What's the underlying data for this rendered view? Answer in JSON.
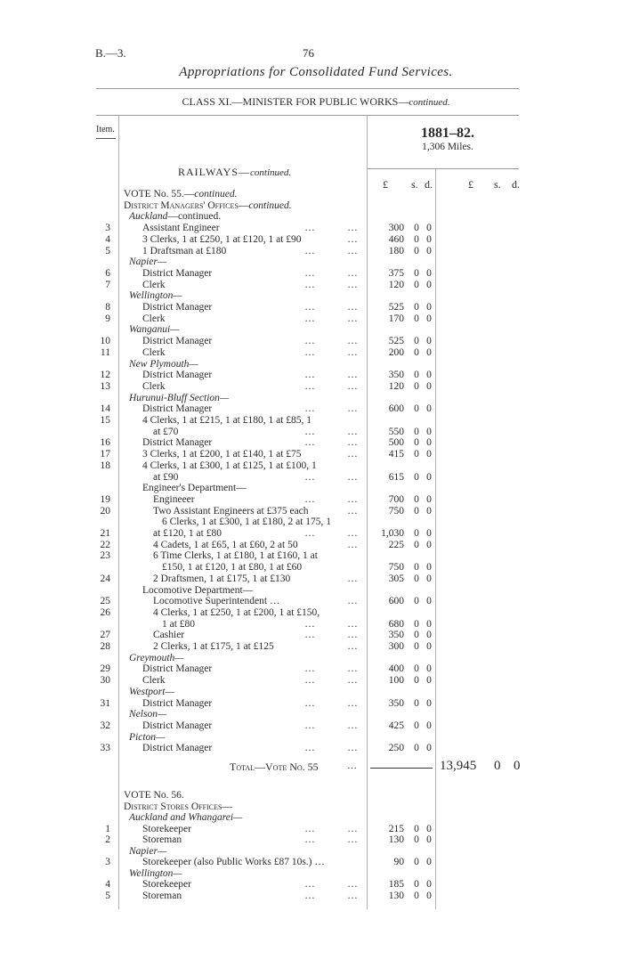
{
  "header": {
    "ref": "B.—3.",
    "page_number": "76",
    "title": "Appropriations for Consolidated Fund Services.",
    "class_heading": "CLASS XI.—MINISTER FOR PUBLIC WORKS—",
    "class_heading_suffix": "continued."
  },
  "table_header": {
    "item_label": "Item.",
    "year": "1881–82.",
    "miles": "1,306 Miles.",
    "pounds": "£",
    "shillings": "s.",
    "pence": "d.",
    "pounds2": "£",
    "shillings2": "s.",
    "pence2": "d."
  },
  "section": {
    "title": "RAILWAYS—",
    "suffix": "continued."
  },
  "vote55": {
    "rows": [
      {
        "text": "VOTE No. 55.—",
        "suffix": "continued.",
        "indent": 0,
        "style": ""
      },
      {
        "text": "District Managers' Offices—",
        "suffix": "continued.",
        "indent": 0,
        "style": "sc"
      },
      {
        "text": "Auckland",
        "suffix2": "—continued.",
        "indent": 1,
        "style": "it"
      },
      {
        "item": "3",
        "text": "Assistant Engineer",
        "indent": 2,
        "dots": 2,
        "amount": "300",
        "s": "0",
        "d": "0"
      },
      {
        "item": "4",
        "text": "3 Clerks, 1 at £250, 1 at £120, 1 at £90",
        "indent": 2,
        "dots": 1,
        "amount": "460",
        "s": "0",
        "d": "0"
      },
      {
        "item": "5",
        "text": "1 Draftsman at £180",
        "indent": 2,
        "dots": 2,
        "amount": "180",
        "s": "0",
        "d": "0"
      },
      {
        "text": "Napier—",
        "indent": 1,
        "style": "it"
      },
      {
        "item": "6",
        "text": "District Manager",
        "indent": 2,
        "dots": 2,
        "amount": "375",
        "s": "0",
        "d": "0"
      },
      {
        "item": "7",
        "text": "Clerk",
        "indent": 2,
        "dots": 2,
        "amount": "120",
        "s": "0",
        "d": "0"
      },
      {
        "text": "Wellington—",
        "indent": 1,
        "style": "it"
      },
      {
        "item": "8",
        "text": "District Manager",
        "indent": 2,
        "dots": 2,
        "amount": "525",
        "s": "0",
        "d": "0"
      },
      {
        "item": "9",
        "text": "Clerk",
        "indent": 2,
        "dots": 2,
        "amount": "170",
        "s": "0",
        "d": "0"
      },
      {
        "text": "Wanganui—",
        "indent": 1,
        "style": "it"
      },
      {
        "item": "10",
        "text": "District Manager",
        "indent": 2,
        "dots": 2,
        "amount": "525",
        "s": "0",
        "d": "0"
      },
      {
        "item": "11",
        "text": "Clerk",
        "indent": 2,
        "dots": 2,
        "amount": "200",
        "s": "0",
        "d": "0"
      },
      {
        "text": "New Plymouth—",
        "indent": 1,
        "style": "it"
      },
      {
        "item": "12",
        "text": "District Manager",
        "indent": 2,
        "dots": 2,
        "amount": "350",
        "s": "0",
        "d": "0"
      },
      {
        "item": "13",
        "text": "Clerk",
        "indent": 2,
        "dots": 2,
        "amount": "120",
        "s": "0",
        "d": "0"
      },
      {
        "text": "Hurunui-Bluff Section—",
        "indent": 1,
        "style": "it"
      },
      {
        "item": "14",
        "text": "District Manager",
        "indent": 2,
        "dots": 2,
        "amount": "600",
        "s": "0",
        "d": "0"
      },
      {
        "item": "15",
        "text": "4 Clerks, 1 at £215, 1 at £180, 1 at £85, 1",
        "indent": 2
      },
      {
        "text": "at £70",
        "indent": 3,
        "dots": 2,
        "amount": "550",
        "s": "0",
        "d": "0"
      },
      {
        "item": "16",
        "text": "District Manager",
        "indent": 2,
        "dots": 2,
        "amount": "500",
        "s": "0",
        "d": "0"
      },
      {
        "item": "17",
        "text": "3 Clerks, 1 at £200, 1 at £140, 1 at £75",
        "indent": 2,
        "dots": 1,
        "amount": "415",
        "s": "0",
        "d": "0"
      },
      {
        "item": "18",
        "text": "4 Clerks, 1 at £300, 1 at £125, 1 at £100, 1",
        "indent": 2
      },
      {
        "text": "at £90",
        "indent": 3,
        "dots": 2,
        "amount": "615",
        "s": "0",
        "d": "0"
      },
      {
        "text": "Engineer's Department—",
        "indent": 2
      },
      {
        "item": "19",
        "text": "Engineeer",
        "indent": 3,
        "dots": 2,
        "amount": "700",
        "s": "0",
        "d": "0"
      },
      {
        "item": "20",
        "text": "Two Assistant Engineers at £375 each",
        "indent": 3,
        "dots": 1,
        "amount": "750",
        "s": "0",
        "d": "0"
      },
      {
        "text": "6 Clerks, 1 at £300, 1 at £180, 2 at 175, 1",
        "indent": 4
      },
      {
        "item": "21",
        "text": "at £120, 1 at £80",
        "indent": 3,
        "dots": 2,
        "amount": "1,030",
        "s": "0",
        "d": "0"
      },
      {
        "item": "22",
        "text": "4 Cadets, 1 at £65, 1 at £60, 2 at 50",
        "indent": 3,
        "dots": 1,
        "amount": "225",
        "s": "0",
        "d": "0"
      },
      {
        "item": "23",
        "text": "6 Time Clerks, 1 at £180, 1 at £160, 1 at",
        "indent": 3
      },
      {
        "text": "£150, 1 at £120, 1 at £80, 1 at £60",
        "indent": 4,
        "amount": "750",
        "s": "0",
        "d": "0"
      },
      {
        "item": "24",
        "text": "2 Draftsmen, 1 at £175, 1 at £130",
        "indent": 3,
        "dots": 1,
        "amount": "305",
        "s": "0",
        "d": "0"
      },
      {
        "text": "Locomotive Department—",
        "indent": 2
      },
      {
        "item": "25",
        "text": "Locomotive Superintendent …",
        "indent": 3,
        "dots": 1,
        "amount": "600",
        "s": "0",
        "d": "0"
      },
      {
        "item": "26",
        "text": "4 Clerks, 1 at £250, 1 at £200, 1 at £150,",
        "indent": 3
      },
      {
        "text": "1 at £80",
        "indent": 4,
        "dots": 2,
        "amount": "680",
        "s": "0",
        "d": "0"
      },
      {
        "item": "27",
        "text": "Cashier",
        "indent": 3,
        "dots": 2,
        "amount": "350",
        "s": "0",
        "d": "0"
      },
      {
        "item": "28",
        "text": "2 Clerks, 1 at £175, 1 at £125",
        "indent": 3,
        "dots": 1,
        "amount": "300",
        "s": "0",
        "d": "0"
      },
      {
        "text": "Greymouth—",
        "indent": 1,
        "style": "it"
      },
      {
        "item": "29",
        "text": "District Manager",
        "indent": 2,
        "dots": 2,
        "amount": "400",
        "s": "0",
        "d": "0"
      },
      {
        "item": "30",
        "text": "Clerk",
        "indent": 2,
        "dots": 2,
        "amount": "100",
        "s": "0",
        "d": "0"
      },
      {
        "text": "Westport—",
        "indent": 1,
        "style": "it"
      },
      {
        "item": "31",
        "text": "District Manager",
        "indent": 2,
        "dots": 2,
        "amount": "350",
        "s": "0",
        "d": "0"
      },
      {
        "text": "Nelson—",
        "indent": 1,
        "style": "it"
      },
      {
        "item": "32",
        "text": "District Manager",
        "indent": 2,
        "dots": 2,
        "amount": "425",
        "s": "0",
        "d": "0"
      },
      {
        "text": "Picton—",
        "indent": 1,
        "style": "it"
      },
      {
        "item": "33",
        "text": "District Manager",
        "indent": 2,
        "dots": 2,
        "amount": "250",
        "s": "0",
        "d": "0"
      }
    ],
    "total_label": "Total—Vote No. 55",
    "total_dots": "…",
    "total": {
      "amount": "13,945",
      "s": "0",
      "d": "0"
    }
  },
  "vote56": {
    "rows": [
      {
        "text": "VOTE No. 56.",
        "indent": 0
      },
      {
        "text": "District Stores Offices—",
        "indent": 0,
        "style": "sc"
      },
      {
        "text": "Auckland and Whangarei—",
        "indent": 1,
        "style": "it"
      },
      {
        "item": "1",
        "text": "Storekeeper",
        "indent": 2,
        "dots": 2,
        "amount": "215",
        "s": "0",
        "d": "0"
      },
      {
        "item": "2",
        "text": "Storeman",
        "indent": 2,
        "dots": 2,
        "amount": "130",
        "s": "0",
        "d": "0"
      },
      {
        "text": "Napier—",
        "indent": 1,
        "style": "it"
      },
      {
        "item": "3",
        "text": "Storekeeper (also Public Works £87 10s.) …",
        "indent": 2,
        "amount": "90",
        "s": "0",
        "d": "0"
      },
      {
        "text": "Wellington—",
        "indent": 1,
        "style": "it"
      },
      {
        "item": "4",
        "text": "Storekeeper",
        "indent": 2,
        "dots": 2,
        "amount": "185",
        "s": "0",
        "d": "0"
      },
      {
        "item": "5",
        "text": "Storeman",
        "indent": 2,
        "dots": 2,
        "amount": "130",
        "s": "0",
        "d": "0"
      }
    ]
  },
  "dots": "…"
}
